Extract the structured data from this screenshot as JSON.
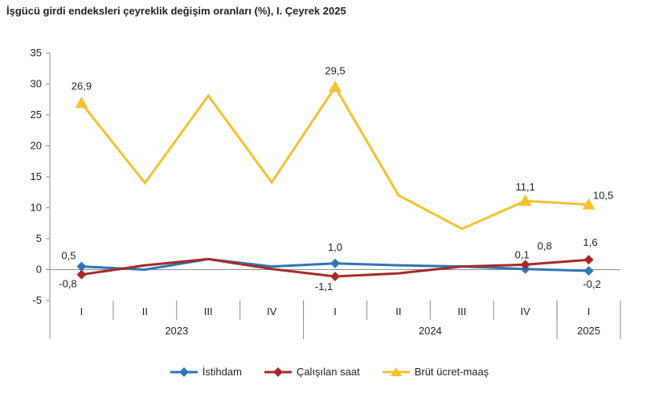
{
  "title": "İşgücü girdi endeksleri çeyreklik değişim oranları (%), I. Çeyrek 2025",
  "chart_data": {
    "type": "line",
    "title": "İşgücü girdi endeksleri çeyreklik değişim oranları (%), I. Çeyrek 2025",
    "categories": [
      "I",
      "II",
      "III",
      "IV",
      "I",
      "II",
      "III",
      "IV",
      "I"
    ],
    "year_groups": [
      {
        "label": "2023",
        "quarters": 4
      },
      {
        "label": "2024",
        "quarters": 4
      },
      {
        "label": "2025",
        "quarters": 1
      }
    ],
    "ylim": [
      -5,
      35
    ],
    "yticks": [
      "-5",
      "0",
      "5",
      "10",
      "15",
      "20",
      "25",
      "30",
      "35"
    ],
    "grid": false,
    "legend_position": "bottom",
    "series": [
      {
        "name": "İstihdam",
        "color": "#2E75B6",
        "marker": "diamond",
        "values": [
          0.5,
          0.0,
          1.7,
          0.5,
          1.0,
          0.7,
          0.5,
          0.1,
          -0.2
        ],
        "labels": [
          "0,5",
          "",
          "",
          "",
          "1,0",
          "",
          "",
          "0,1",
          "-0,2"
        ]
      },
      {
        "name": "Çalışılan saat",
        "color": "#A52A2A",
        "marker": "diamond",
        "values": [
          -0.8,
          0.7,
          1.7,
          0.1,
          -1.1,
          -0.6,
          0.5,
          0.8,
          1.6
        ],
        "labels": [
          "-0,8",
          "",
          "",
          "",
          "-1,1",
          "",
          "",
          "0,8",
          "1,6"
        ]
      },
      {
        "name": "Brüt ücret-maaş",
        "color": "#F2C12E",
        "marker": "triangle",
        "values": [
          26.9,
          14.0,
          28.1,
          14.1,
          29.5,
          12.0,
          6.6,
          11.1,
          10.5
        ],
        "labels": [
          "26,9",
          "",
          "",
          "",
          "29,5",
          "",
          "",
          "11,1",
          "10,5"
        ]
      }
    ]
  }
}
